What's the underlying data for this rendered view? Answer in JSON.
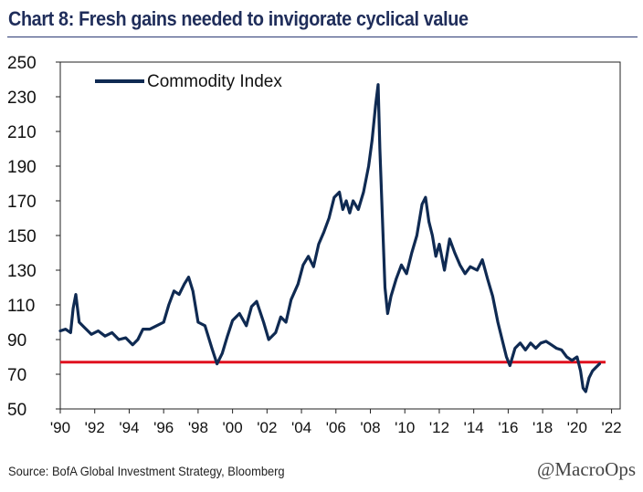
{
  "title": "Chart 8: Fresh gains needed to invigorate cyclical value",
  "source": "Source: BofA Global Investment Strategy, Bloomberg",
  "handle": "@MacroOps",
  "colors": {
    "title": "#1f2d5a",
    "series": "#0f2a52",
    "reference": "#e0101e",
    "rule": "#2b3a73"
  },
  "chart_data": {
    "type": "line",
    "title": "Chart 8: Fresh gains needed to invigorate cyclical value",
    "xlabel": "",
    "ylabel": "",
    "xlim": [
      1990,
      2022.5
    ],
    "ylim": [
      50,
      250
    ],
    "yticks": [
      50,
      70,
      90,
      110,
      130,
      150,
      170,
      190,
      210,
      230,
      250
    ],
    "xticks": [
      1990,
      1992,
      1994,
      1996,
      1998,
      2000,
      2002,
      2004,
      2006,
      2008,
      2010,
      2012,
      2014,
      2016,
      2018,
      2020,
      2022
    ],
    "xtick_labels": [
      "'90",
      "'92",
      "'94",
      "'96",
      "'98",
      "'00",
      "'02",
      "'04",
      "'06",
      "'08",
      "'10",
      "'12",
      "'14",
      "'16",
      "'18",
      "'20",
      "'22"
    ],
    "legend": {
      "label": "Commodity Index",
      "position": "top-left"
    },
    "reference_line": {
      "y": 77,
      "label": ""
    },
    "series": [
      {
        "name": "Commodity Index",
        "x": [
          1990.0,
          1990.3,
          1990.6,
          1990.75,
          1990.9,
          1991.1,
          1991.4,
          1991.8,
          1992.2,
          1992.6,
          1993.0,
          1993.4,
          1993.8,
          1994.2,
          1994.5,
          1994.8,
          1995.2,
          1995.6,
          1996.0,
          1996.3,
          1996.6,
          1996.9,
          1997.2,
          1997.45,
          1997.7,
          1998.0,
          1998.4,
          1998.8,
          1999.1,
          1999.4,
          1999.7,
          2000.0,
          2000.4,
          2000.8,
          2001.1,
          2001.4,
          2001.8,
          2002.1,
          2002.5,
          2002.8,
          2003.1,
          2003.4,
          2003.8,
          2004.1,
          2004.4,
          2004.7,
          2005.0,
          2005.3,
          2005.6,
          2005.9,
          2006.2,
          2006.4,
          2006.6,
          2006.8,
          2007.0,
          2007.3,
          2007.6,
          2007.9,
          2008.1,
          2008.3,
          2008.45,
          2008.55,
          2008.7,
          2008.85,
          2009.0,
          2009.2,
          2009.5,
          2009.8,
          2010.1,
          2010.4,
          2010.7,
          2011.0,
          2011.2,
          2011.4,
          2011.6,
          2011.8,
          2012.0,
          2012.3,
          2012.6,
          2012.9,
          2013.2,
          2013.5,
          2013.8,
          2014.2,
          2014.5,
          2014.8,
          2015.1,
          2015.4,
          2015.7,
          2015.9,
          2016.1,
          2016.4,
          2016.7,
          2017.0,
          2017.3,
          2017.6,
          2017.9,
          2018.2,
          2018.5,
          2018.8,
          2019.1,
          2019.4,
          2019.7,
          2020.0,
          2020.2,
          2020.35,
          2020.5,
          2020.7,
          2020.9,
          2021.1,
          2021.3
        ],
        "y": [
          95,
          96,
          94,
          108,
          116,
          100,
          97,
          93,
          95,
          92,
          94,
          90,
          91,
          87,
          90,
          96,
          96,
          98,
          100,
          110,
          118,
          116,
          122,
          126,
          118,
          100,
          98,
          85,
          76,
          82,
          92,
          101,
          105,
          98,
          109,
          112,
          100,
          90,
          94,
          103,
          100,
          113,
          122,
          133,
          138,
          132,
          145,
          152,
          160,
          172,
          175,
          165,
          170,
          163,
          170,
          165,
          175,
          190,
          205,
          225,
          237,
          200,
          160,
          120,
          105,
          115,
          125,
          133,
          128,
          140,
          150,
          168,
          172,
          158,
          150,
          138,
          145,
          130,
          148,
          140,
          133,
          128,
          132,
          130,
          136,
          125,
          115,
          100,
          88,
          80,
          75,
          85,
          88,
          84,
          88,
          85,
          88,
          89,
          87,
          85,
          84,
          80,
          78,
          80,
          72,
          62,
          60,
          68,
          72,
          74,
          76
        ]
      }
    ]
  }
}
